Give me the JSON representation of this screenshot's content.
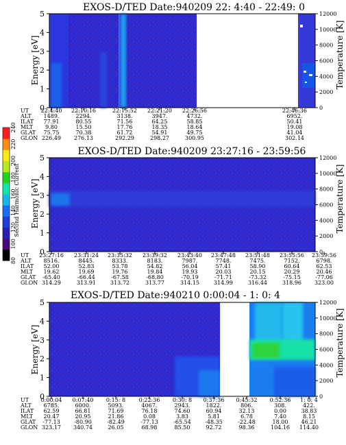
{
  "figure": "EXOS-D/TED spectrograms",
  "colorbar": {
    "label": "Second Harmonic Current",
    "ticks": [
      "80",
      "100",
      "120",
      "140",
      "160",
      "180",
      "200",
      "220",
      "240"
    ],
    "colors": [
      "#000000",
      "#4b0a7a",
      "#2b1fb2",
      "#1f3fdb",
      "#1e6cf0",
      "#18b8e8",
      "#18e3a8",
      "#22d41e",
      "#b8e81c",
      "#ffe81a",
      "#ff8a14",
      "#ff1e1e"
    ]
  },
  "chart_data": [
    {
      "type": "heatmap",
      "title": "EXOS-D/TED   Date:940209  22: 4:40 - 22:49: 0",
      "ylabel": "Energy [eV]",
      "y2label": "Temperature [K]",
      "ylim": [
        0,
        5
      ],
      "y2lim": [
        0,
        12000
      ],
      "yticks": [
        "0",
        "1",
        "2",
        "3",
        "4",
        "5"
      ],
      "y2ticks": [
        "0",
        "2000",
        "4000",
        "6000",
        "8000",
        "10000",
        "12000"
      ],
      "data_gap_utc": [
        "22:30",
        "22:46"
      ],
      "ephemeris": {
        "labels": [
          "UT",
          "ALT",
          "ILAT",
          "MLT",
          "GLAT",
          "GLON"
        ],
        "columns": [
          [
            "22:4:40",
            "1489.",
            "77.91",
            "9.80",
            "75.75",
            "226.49"
          ],
          [
            "22:10:16",
            "2294.",
            "80.55",
            "15.50",
            "70.38",
            "276.13"
          ],
          [
            "22:15:52",
            "3138.",
            "71.56",
            "17.76",
            "61.72",
            "292.29"
          ],
          [
            "22:21:20",
            "3947.",
            "64.25",
            "18.35",
            "54.91",
            "298.27"
          ],
          [
            "22:26:56",
            "4732.",
            "58.85",
            "18.64",
            "49.75",
            "300.95"
          ],
          [
            "22:46:36",
            "6952.",
            "50.41",
            "19.08",
            "41.04",
            "302.14"
          ]
        ]
      }
    },
    {
      "type": "heatmap",
      "title": "EXOS-D/TED   Date:940209  23:27:16 - 23:59:56",
      "ylabel": "Energy [eV]",
      "y2label": "Temperature [K]",
      "ylim": [
        0,
        5
      ],
      "y2lim": [
        0,
        12000
      ],
      "yticks": [
        "0",
        "1",
        "2",
        "3",
        "4",
        "5"
      ],
      "y2ticks": [
        "0",
        "2000",
        "4000",
        "6000",
        "8000",
        "10000",
        "12000"
      ],
      "ephemeris": {
        "labels": [
          "UT",
          "ALT",
          "ILAT",
          "MLT",
          "GLAT",
          "GLON"
        ],
        "columns": [
          [
            "23:27:16",
            "8516.",
            "52.00",
            "19.62",
            "-65.40",
            "314.29"
          ],
          [
            "23:31:24",
            "8445.",
            "52.83",
            "19.69",
            "-66.44",
            "313.91"
          ],
          [
            "23:35:32",
            "8333.",
            "53.78",
            "19.76",
            "-67.58",
            "313.72"
          ],
          [
            "23:39:32",
            "8183.",
            "54.82",
            "19.84",
            "-68.80",
            "313.77"
          ],
          [
            "23:43:40",
            "7987.",
            "56.04",
            "19.93",
            "-70.19",
            "314.15"
          ],
          [
            "23:47:48",
            "7748.",
            "57.41",
            "20.03",
            "-71.71",
            "314.99"
          ],
          [
            "23:51:48",
            "7475.",
            "58.90",
            "20.15",
            "-73.32",
            "316.44"
          ],
          [
            "23:55:56",
            "7152.",
            "60.64",
            "20.29",
            "-75.15",
            "318.96"
          ],
          [
            "23:59:56",
            "6798.",
            "62.53",
            "20.46",
            "-77.06",
            "323.00"
          ]
        ]
      }
    },
    {
      "type": "heatmap",
      "title": "EXOS-D/TED   Date:940210  0:00:04 - 1: 0: 4",
      "ylabel": "Energy [eV]",
      "y2label": "Temperature [K]",
      "ylim": [
        0,
        5
      ],
      "y2lim": [
        0,
        12000
      ],
      "yticks": [
        "0",
        "1",
        "2",
        "3",
        "4",
        "5"
      ],
      "y2ticks": [
        "0",
        "2000",
        "4000",
        "6000",
        "8000",
        "10000",
        "12000"
      ],
      "data_gap_utc": [
        "0:38",
        "0:44"
      ],
      "ephemeris": {
        "labels": [
          "UT",
          "ALT",
          "ILAT",
          "MLT",
          "GLAT",
          "GLON"
        ],
        "columns": [
          [
            "0:00:04",
            "6785.",
            "62.59",
            "20.47",
            "-77.13",
            "323.17"
          ],
          [
            "0:07:40",
            "6000.",
            "66.81",
            "20.95",
            "-80.90",
            "340.74"
          ],
          [
            "0:15: 8",
            "5093.",
            "71.69",
            "21.86",
            "-82.49",
            "26.05"
          ],
          [
            "0:22:36",
            "4067.",
            "76.18",
            "0.08",
            "-77.13",
            "68.98"
          ],
          [
            "0:30: 8",
            "2943.",
            "74.60",
            "3.83",
            "-65.54",
            "85.50"
          ],
          [
            "0:37:36",
            "1822.",
            "60.94",
            "5.81",
            "-48.35",
            "92.72"
          ],
          [
            "0:45:32",
            "806.",
            "32.13",
            "6.78",
            "-22.48",
            "98.36"
          ],
          [
            "0:52:36",
            "308.",
            "0.00",
            "7.40",
            "18.00",
            "104.16"
          ],
          [
            "1: 0: 4",
            "422.",
            "38.83",
            "8.15",
            "46.21",
            "114.40"
          ]
        ]
      }
    }
  ]
}
